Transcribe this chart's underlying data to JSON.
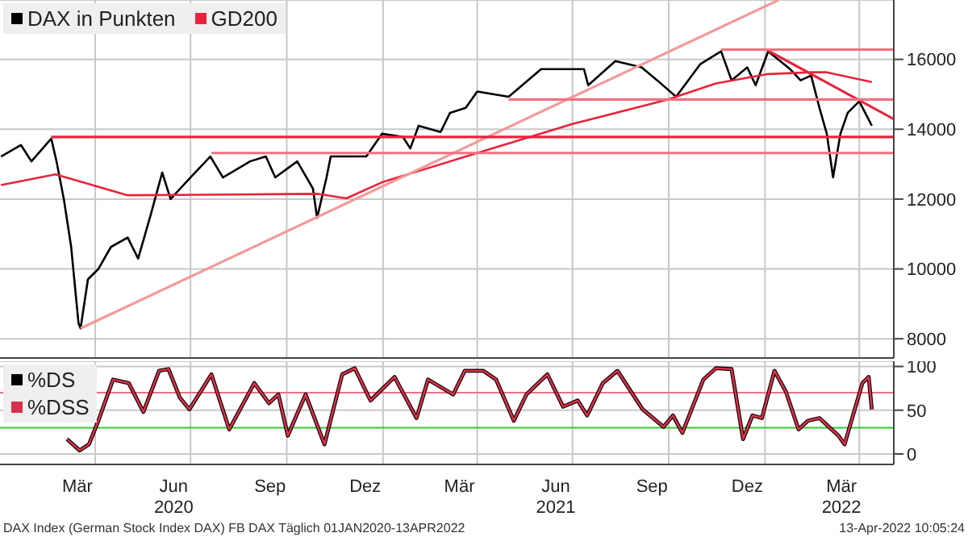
{
  "chart_data": [
    {
      "type": "line",
      "legend": "top left",
      "grid": true,
      "marker": "none",
      "tick_labels": "y",
      "xlim": [
        "2020-01-01",
        "2022-05-04"
      ],
      "xticks": [
        {
          "value": "2020-04-01",
          "label": null
        },
        {
          "value": "2020-07-01",
          "label": null
        },
        {
          "value": "2020-10-01",
          "label": null
        },
        {
          "value": "2021-01-01",
          "label": null
        },
        {
          "value": "2021-04-01",
          "label": null
        },
        {
          "value": "2021-07-01",
          "label": null
        },
        {
          "value": "2021-10-01",
          "label": null
        },
        {
          "value": "2022-01-01",
          "label": null
        },
        {
          "value": "2022-04-01",
          "label": null
        }
      ],
      "ylim": [
        7450,
        17700
      ],
      "yticks": [
        8000,
        10000,
        12000,
        14000,
        16000
      ],
      "series": [
        {
          "name": "DAX in Punkten",
          "color": "#000000",
          "x": [
            "2020-01-02",
            "2020-01-21",
            "2020-01-31",
            "2020-02-19",
            "2020-02-24",
            "2020-03-02",
            "2020-03-09",
            "2020-03-16",
            "2020-03-18",
            "2020-03-25",
            "2020-04-04",
            "2020-04-16",
            "2020-05-02",
            "2020-05-12",
            "2020-05-24",
            "2020-06-04",
            "2020-06-12",
            "2020-07-01",
            "2020-07-20",
            "2020-08-01",
            "2020-08-27",
            "2020-09-11",
            "2020-09-20",
            "2020-10-11",
            "2020-10-26",
            "2020-10-30",
            "2020-11-08",
            "2020-11-12",
            "2020-12-16",
            "2020-12-31",
            "2021-01-20",
            "2021-01-27",
            "2021-02-04",
            "2021-02-25",
            "2021-03-06",
            "2021-03-21",
            "2021-04-01",
            "2021-05-01",
            "2021-06-01",
            "2021-07-12",
            "2021-07-16",
            "2021-08-11",
            "2021-09-05",
            "2021-09-20",
            "2021-10-08",
            "2021-10-31",
            "2021-11-20",
            "2021-11-30",
            "2021-12-15",
            "2021-12-23",
            "2022-01-04",
            "2022-01-25",
            "2022-02-04",
            "2022-02-14",
            "2022-02-22",
            "2022-03-01",
            "2022-03-07",
            "2022-03-14",
            "2022-03-21",
            "2022-04-01",
            "2022-04-13"
          ],
          "values": [
            13220,
            13550,
            13080,
            13730,
            13080,
            12000,
            10630,
            8450,
            8300,
            9700,
            10000,
            10630,
            10900,
            10300,
            11550,
            12760,
            12000,
            12620,
            13220,
            12620,
            13080,
            13220,
            12620,
            13080,
            12300,
            11460,
            12620,
            13220,
            13220,
            13870,
            13780,
            13450,
            14100,
            13920,
            14470,
            14610,
            15080,
            14930,
            15720,
            15720,
            15260,
            15950,
            15770,
            15400,
            14930,
            15860,
            16230,
            15400,
            15770,
            15260,
            16230,
            15720,
            15400,
            15540,
            14610,
            13870,
            12620,
            13870,
            14470,
            14800,
            14100
          ]
        },
        {
          "name": "GD200",
          "color": "#e8243c",
          "x": [
            "2020-01-02",
            "2020-02-23",
            "2020-05-02",
            "2020-10-31",
            "2020-11-27",
            "2020-12-31",
            "2021-04-01",
            "2021-07-01",
            "2021-09-30",
            "2021-11-15",
            "2022-01-04",
            "2022-02-14",
            "2022-03-01",
            "2022-04-13"
          ],
          "values": [
            12400,
            12710,
            12110,
            12150,
            12020,
            12480,
            13320,
            14150,
            14850,
            15310,
            15580,
            15630,
            15630,
            15350
          ]
        },
        {
          "color": "#f29a9a",
          "x": [
            "2020-03-18",
            "2022-01-14"
          ],
          "values": [
            8300,
            17700
          ]
        },
        {
          "color": "#e8243c",
          "x": [
            "2022-01-04",
            "2022-05-04"
          ],
          "values": [
            16250,
            14290
          ]
        },
        {
          "color": "#f07080",
          "x": [
            "2021-11-20",
            "2022-05-04"
          ],
          "values": [
            16280,
            16280
          ]
        },
        {
          "color": "#f07080",
          "x": [
            "2021-05-01",
            "2022-05-04"
          ],
          "values": [
            14850,
            14850
          ]
        },
        {
          "color": "#f07080",
          "x": [
            "2020-07-21",
            "2022-05-04"
          ],
          "values": [
            13320,
            13320
          ]
        },
        {
          "color": "#e8243c",
          "x": [
            "2020-02-19",
            "2022-05-04"
          ],
          "values": [
            13780,
            13780
          ]
        }
      ]
    },
    {
      "type": "line",
      "legend": "top left",
      "grid": true,
      "marker": "none",
      "xlim": [
        "2020-01-01",
        "2022-05-04"
      ],
      "xticks": [
        {
          "value": "2020-03-15",
          "label": "Mär"
        },
        {
          "value": "2020-04-01",
          "label": null
        },
        {
          "value": "2020-06-15",
          "label": "Jun\n2020"
        },
        {
          "value": "2020-07-01",
          "label": null
        },
        {
          "value": "2020-09-15",
          "label": "Sep"
        },
        {
          "value": "2020-10-01",
          "label": null
        },
        {
          "value": "2020-12-15",
          "label": "Dez"
        },
        {
          "value": "2021-01-01",
          "label": null
        },
        {
          "value": "2021-03-15",
          "label": "Mär"
        },
        {
          "value": "2021-04-01",
          "label": null
        },
        {
          "value": "2021-06-15",
          "label": "Jun\n2021"
        },
        {
          "value": "2021-07-01",
          "label": null
        },
        {
          "value": "2021-09-15",
          "label": "Sep"
        },
        {
          "value": "2021-10-01",
          "label": null
        },
        {
          "value": "2021-12-15",
          "label": "Dez"
        },
        {
          "value": "2022-01-01",
          "label": null
        },
        {
          "value": "2022-03-15",
          "label": "Mär\n2022"
        },
        {
          "value": "2022-04-01",
          "label": null
        }
      ],
      "ylim": [
        -12,
        106
      ],
      "yticks": [
        0,
        50,
        100
      ],
      "ref_lines": [
        {
          "axis": "y",
          "value": 70,
          "color": "#f07080"
        },
        {
          "axis": "y",
          "value": 30,
          "color": "#33cc33"
        }
      ],
      "series": [
        {
          "name": "%DS",
          "color": "#000000",
          "x": [
            "2020-03-05",
            "2020-03-17",
            "2020-03-26",
            "2020-04-04",
            "2020-04-18",
            "2020-05-03",
            "2020-05-17",
            "2020-06-01",
            "2020-06-10",
            "2020-06-21",
            "2020-06-30",
            "2020-07-21",
            "2020-08-07",
            "2020-08-31",
            "2020-09-14",
            "2020-09-23",
            "2020-10-02",
            "2020-10-19",
            "2020-11-06",
            "2020-11-23",
            "2020-12-05",
            "2020-12-20",
            "2021-01-12",
            "2021-02-02",
            "2021-02-13",
            "2021-03-09",
            "2021-03-20",
            "2021-04-07",
            "2021-04-19",
            "2021-05-06",
            "2021-05-18",
            "2021-06-07",
            "2021-06-22",
            "2021-07-06",
            "2021-07-15",
            "2021-07-30",
            "2021-08-13",
            "2021-09-06",
            "2021-09-26",
            "2021-10-05",
            "2021-10-14",
            "2021-11-03",
            "2021-11-15",
            "2021-11-30",
            "2021-12-11",
            "2021-12-20",
            "2021-12-29",
            "2022-01-10",
            "2022-01-21",
            "2022-02-02",
            "2022-02-11",
            "2022-02-22",
            "2022-03-12",
            "2022-03-18",
            "2022-04-04",
            "2022-04-10",
            "2022-04-13"
          ],
          "values": [
            17,
            4,
            11,
            38,
            85,
            81,
            48,
            95,
            97,
            64,
            51,
            91,
            28,
            81,
            58,
            68,
            21,
            68,
            11,
            91,
            98,
            61,
            88,
            41,
            85,
            68,
            95,
            95,
            85,
            38,
            68,
            91,
            54,
            61,
            44,
            81,
            95,
            51,
            31,
            44,
            24,
            85,
            98,
            97,
            17,
            44,
            41,
            95,
            71,
            28,
            38,
            41,
            21,
            11,
            81,
            88,
            51
          ]
        },
        {
          "name": "%DSS",
          "color": "#d9314a",
          "x": [
            "2020-03-05",
            "2020-03-17",
            "2020-03-26",
            "2020-04-04",
            "2020-04-18",
            "2020-05-03",
            "2020-05-17",
            "2020-06-01",
            "2020-06-10",
            "2020-06-21",
            "2020-06-30",
            "2020-07-21",
            "2020-08-07",
            "2020-08-31",
            "2020-09-14",
            "2020-09-23",
            "2020-10-02",
            "2020-10-19",
            "2020-11-06",
            "2020-11-23",
            "2020-12-05",
            "2020-12-20",
            "2021-01-12",
            "2021-02-02",
            "2021-02-13",
            "2021-03-09",
            "2021-03-20",
            "2021-04-07",
            "2021-04-19",
            "2021-05-06",
            "2021-05-18",
            "2021-06-07",
            "2021-06-22",
            "2021-07-06",
            "2021-07-15",
            "2021-07-30",
            "2021-08-13",
            "2021-09-06",
            "2021-09-26",
            "2021-10-05",
            "2021-10-14",
            "2021-11-03",
            "2021-11-15",
            "2021-11-30",
            "2021-12-11",
            "2021-12-20",
            "2021-12-29",
            "2022-01-10",
            "2022-01-21",
            "2022-02-02",
            "2022-02-11",
            "2022-02-22",
            "2022-03-12",
            "2022-03-18",
            "2022-04-04",
            "2022-04-10",
            "2022-04-13"
          ],
          "values": [
            17,
            4,
            11,
            38,
            85,
            81,
            48,
            95,
            97,
            64,
            51,
            91,
            28,
            81,
            58,
            68,
            21,
            68,
            11,
            91,
            98,
            61,
            88,
            41,
            85,
            68,
            95,
            95,
            85,
            38,
            68,
            91,
            54,
            61,
            44,
            81,
            95,
            51,
            31,
            44,
            24,
            85,
            98,
            97,
            17,
            44,
            41,
            95,
            71,
            28,
            38,
            41,
            21,
            11,
            81,
            88,
            51
          ]
        }
      ],
      "annotations": [
        "DAX Index (German Stock Index DAX) FB DAX  Täglich 01JAN2020-13APR2022",
        "13-Apr-2022 10:05:24"
      ]
    }
  ]
}
